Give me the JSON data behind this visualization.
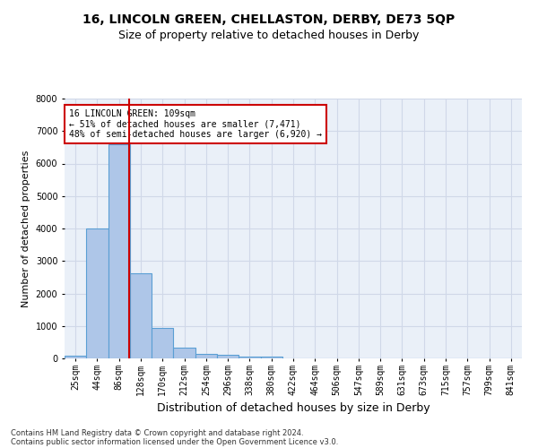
{
  "title1": "16, LINCOLN GREEN, CHELLASTON, DERBY, DE73 5QP",
  "title2": "Size of property relative to detached houses in Derby",
  "xlabel": "Distribution of detached houses by size in Derby",
  "ylabel": "Number of detached properties",
  "footer1": "Contains HM Land Registry data © Crown copyright and database right 2024.",
  "footer2": "Contains public sector information licensed under the Open Government Licence v3.0.",
  "bin_labels": [
    "25sqm",
    "44sqm",
    "86sqm",
    "128sqm",
    "170sqm",
    "212sqm",
    "254sqm",
    "296sqm",
    "338sqm",
    "380sqm",
    "422sqm",
    "464sqm",
    "506sqm",
    "547sqm",
    "589sqm",
    "631sqm",
    "673sqm",
    "715sqm",
    "757sqm",
    "799sqm",
    "841sqm"
  ],
  "bar_values": [
    75,
    4000,
    6580,
    2630,
    950,
    330,
    140,
    100,
    65,
    50,
    0,
    0,
    0,
    0,
    0,
    0,
    0,
    0,
    0,
    0,
    0
  ],
  "bar_color": "#aec6e8",
  "bar_edge_color": "#5a9fd4",
  "vline_x_index": 2.45,
  "annotation_text": "16 LINCOLN GREEN: 109sqm\n← 51% of detached houses are smaller (7,471)\n48% of semi-detached houses are larger (6,920) →",
  "annotation_box_color": "#cc0000",
  "vline_color": "#cc0000",
  "ylim": [
    0,
    8000
  ],
  "yticks": [
    0,
    1000,
    2000,
    3000,
    4000,
    5000,
    6000,
    7000,
    8000
  ],
  "grid_color": "#d0d8e8",
  "bg_color": "#eaf0f8",
  "title1_fontsize": 10,
  "title2_fontsize": 9,
  "xlabel_fontsize": 9,
  "ylabel_fontsize": 8,
  "tick_fontsize": 7,
  "ann_fontsize": 7,
  "footer_fontsize": 6
}
